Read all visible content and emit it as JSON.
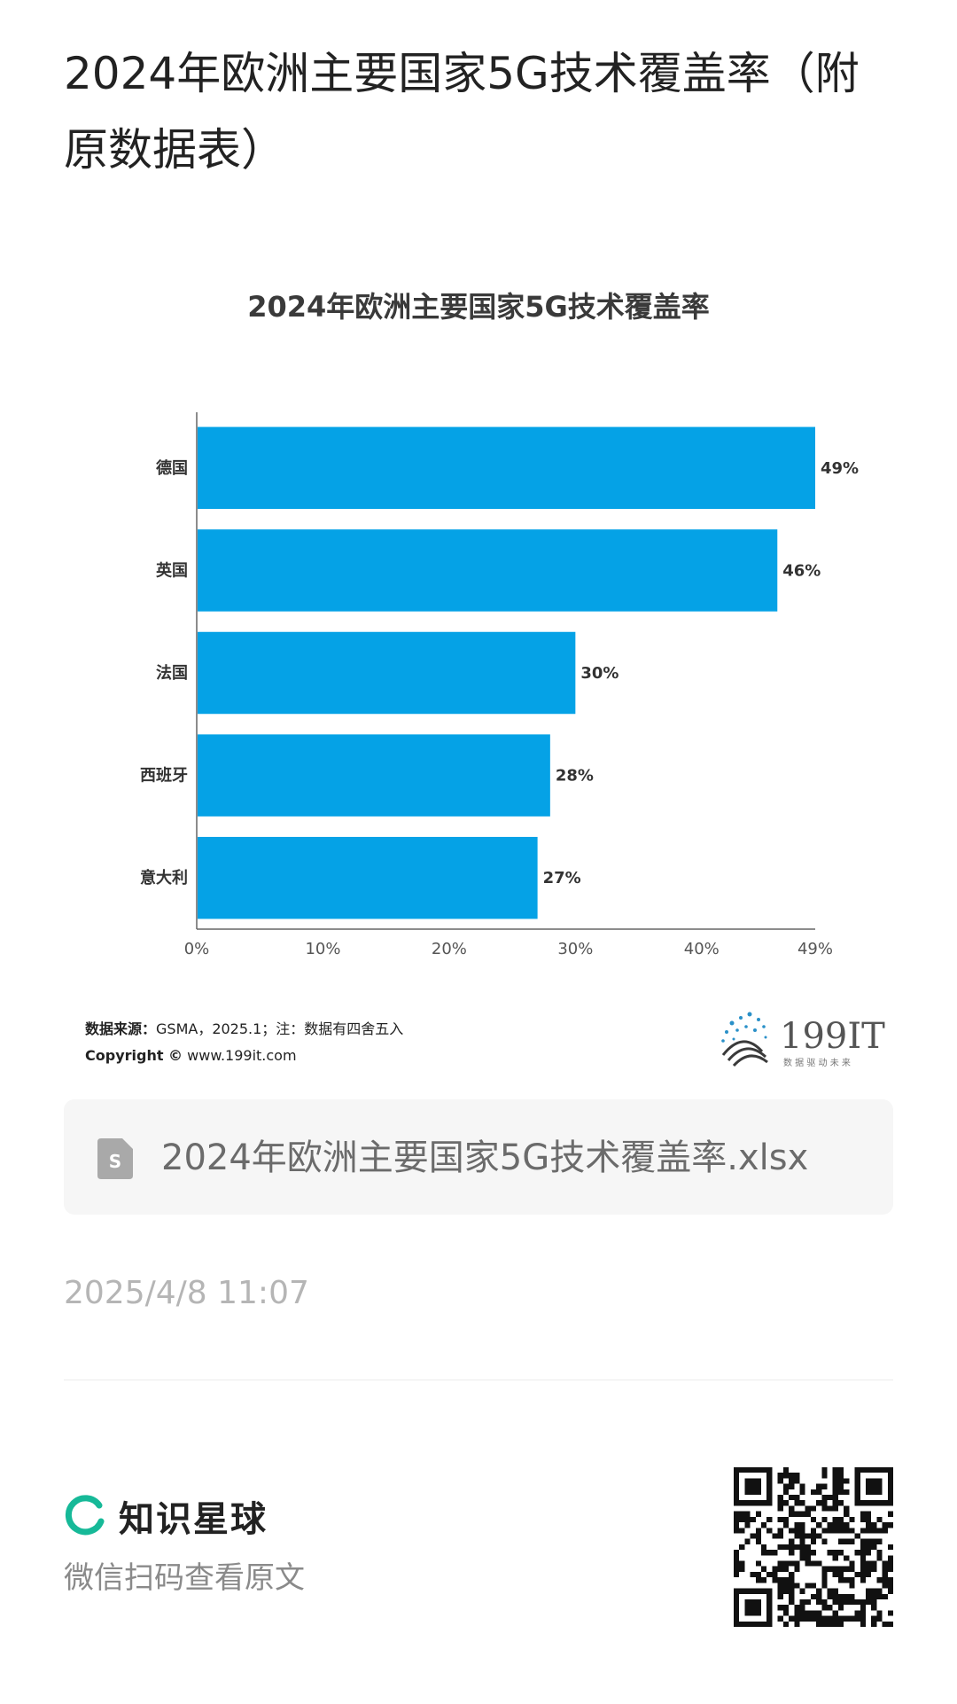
{
  "page": {
    "title": "2024年欧洲主要国家5G技术覆盖率（附原数据表）"
  },
  "chart_data": {
    "type": "bar",
    "orientation": "horizontal",
    "title": "2024年欧洲主要国家5G技术覆盖率",
    "categories": [
      "德国",
      "英国",
      "法国",
      "西班牙",
      "意大利"
    ],
    "values": [
      49,
      46,
      30,
      28,
      27
    ],
    "value_labels": [
      "49%",
      "46%",
      "30%",
      "28%",
      "27%"
    ],
    "x_ticks": [
      0,
      10,
      20,
      30,
      40,
      49
    ],
    "x_tick_labels": [
      "0%",
      "10%",
      "20%",
      "30%",
      "40%",
      "49%"
    ],
    "xlim": [
      0,
      49
    ],
    "xlabel": "",
    "ylabel": "",
    "grid": false,
    "bar_color": "#05a2e6"
  },
  "source": {
    "label": "数据来源：",
    "text": "GSMA，2025.1；注：数据有四舍五入",
    "copyright_label": "Copyright ©",
    "copyright_site": "www.199it.com"
  },
  "brand": {
    "name": "199IT",
    "slogan": "数 据 驱 动 未 来"
  },
  "file": {
    "name": "2024年欧洲主要国家5G技术覆盖率.xlsx",
    "icon": "spreadsheet-file-icon"
  },
  "meta": {
    "timestamp": "2025/4/8 11:07"
  },
  "footer": {
    "app_name": "知识星球",
    "app_icon": "zsxq-ring-icon",
    "hint": "微信扫码查看原文",
    "accent_color": "#16b998"
  }
}
